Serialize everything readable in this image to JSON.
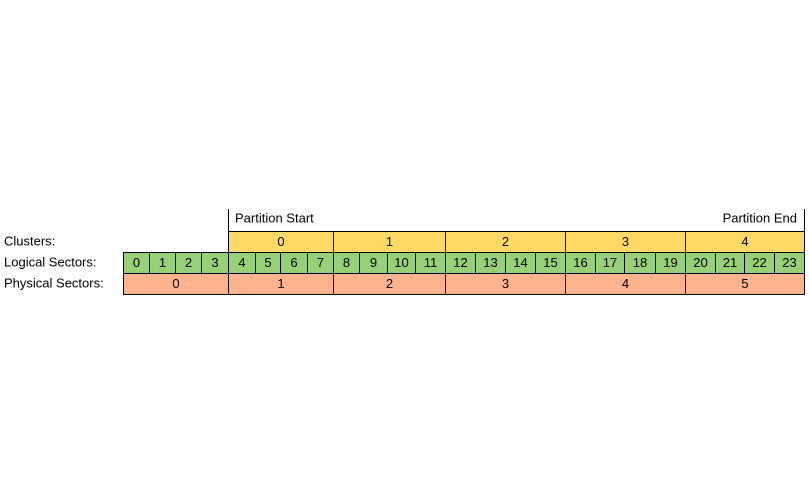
{
  "partition_start": "Partition Start",
  "partition_end": "Partition End",
  "rows": [
    {
      "label": "Clusters:",
      "cells": [
        0,
        1,
        2,
        3,
        4
      ]
    },
    {
      "label": "Logical Sectors:",
      "cells": [
        0,
        1,
        2,
        3,
        4,
        5,
        6,
        7,
        8,
        9,
        10,
        11,
        12,
        13,
        14,
        15,
        16,
        17,
        18,
        19,
        20,
        21,
        22,
        23
      ]
    },
    {
      "label": "Physical Sectors:",
      "cells": [
        0,
        1,
        2,
        3,
        4,
        5
      ]
    }
  ]
}
